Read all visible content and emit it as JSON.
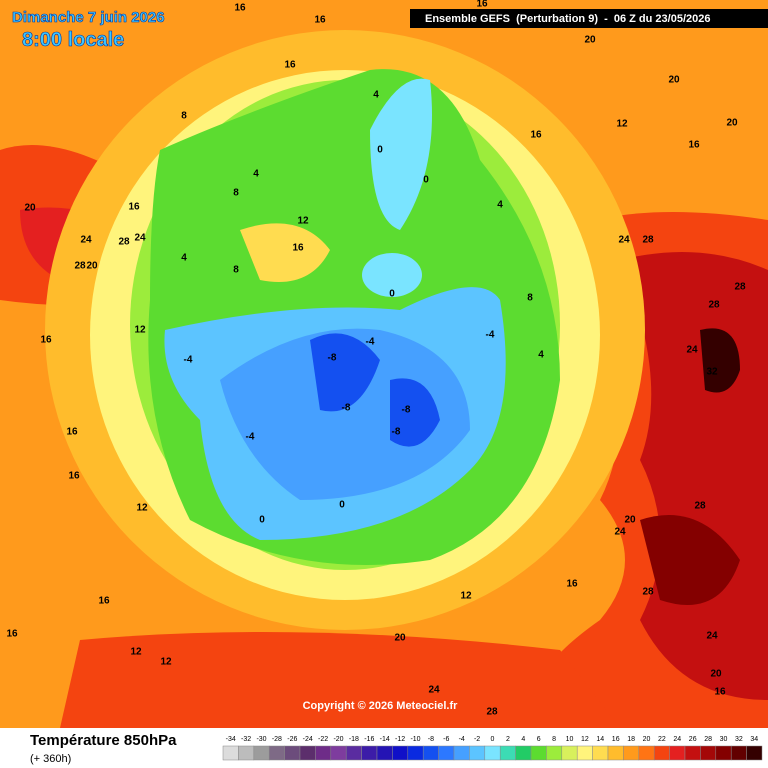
{
  "header": {
    "date": "Dimanche 7 juin 2026",
    "time": "8:00 locale",
    "run": "Ensemble GEFS  (Perturbation 9)  -  06 Z du 23/05/2026"
  },
  "copyright": "Copyright © 2026 Meteociel.fr",
  "footer": {
    "title": "Température 850hPa",
    "lead": "(+ 360h)"
  },
  "legend": {
    "items": [
      {
        "value": -34,
        "color": "#dcdcdc"
      },
      {
        "value": -32,
        "color": "#bcbcbc"
      },
      {
        "value": -30,
        "color": "#9c9c9c"
      },
      {
        "value": -28,
        "color": "#7e6a86"
      },
      {
        "value": -26,
        "color": "#6c4c7c"
      },
      {
        "value": -24,
        "color": "#5c2e6c"
      },
      {
        "value": -22,
        "color": "#6e2c88"
      },
      {
        "value": -20,
        "color": "#7e3c9e"
      },
      {
        "value": -18,
        "color": "#5a2ca0"
      },
      {
        "value": -16,
        "color": "#3c1ca8"
      },
      {
        "value": -14,
        "color": "#2414b4"
      },
      {
        "value": -12,
        "color": "#1010c8"
      },
      {
        "value": -10,
        "color": "#0a2ae0"
      },
      {
        "value": -8,
        "color": "#1450f0"
      },
      {
        "value": -6,
        "color": "#2c78ff"
      },
      {
        "value": -4,
        "color": "#46a0ff"
      },
      {
        "value": -2,
        "color": "#5cc4ff"
      },
      {
        "value": 0,
        "color": "#7ae4ff"
      },
      {
        "value": 2,
        "color": "#3cdcb4"
      },
      {
        "value": 4,
        "color": "#22cc66"
      },
      {
        "value": 6,
        "color": "#5cdc30"
      },
      {
        "value": 8,
        "color": "#9cec3c"
      },
      {
        "value": 10,
        "color": "#d8f05c"
      },
      {
        "value": 12,
        "color": "#fff47c"
      },
      {
        "value": 14,
        "color": "#ffdc50"
      },
      {
        "value": 16,
        "color": "#ffbc2c"
      },
      {
        "value": 18,
        "color": "#ff9a1c"
      },
      {
        "value": 20,
        "color": "#ff7414"
      },
      {
        "value": 22,
        "color": "#f44410"
      },
      {
        "value": 24,
        "color": "#e42020"
      },
      {
        "value": 26,
        "color": "#c41010"
      },
      {
        "value": 28,
        "color": "#a40808"
      },
      {
        "value": 30,
        "color": "#840000"
      },
      {
        "value": 32,
        "color": "#620000"
      },
      {
        "value": 34,
        "color": "#340000"
      }
    ]
  },
  "map": {
    "labels": [
      24,
      28,
      28,
      20,
      24,
      20,
      16,
      16,
      12,
      16,
      16,
      12,
      16,
      12,
      12,
      16,
      8,
      4,
      8,
      12,
      16,
      4,
      8,
      4,
      0,
      0,
      4,
      8,
      4,
      0,
      -4,
      -8,
      -8,
      -8,
      -8,
      -4,
      -4,
      0,
      0,
      -4,
      12,
      16,
      20,
      24,
      28,
      24,
      28,
      28,
      24,
      28,
      32,
      28,
      28,
      24,
      20,
      16,
      20,
      24,
      20,
      20,
      20,
      16,
      12,
      16,
      16,
      16,
      16,
      16
    ]
  }
}
